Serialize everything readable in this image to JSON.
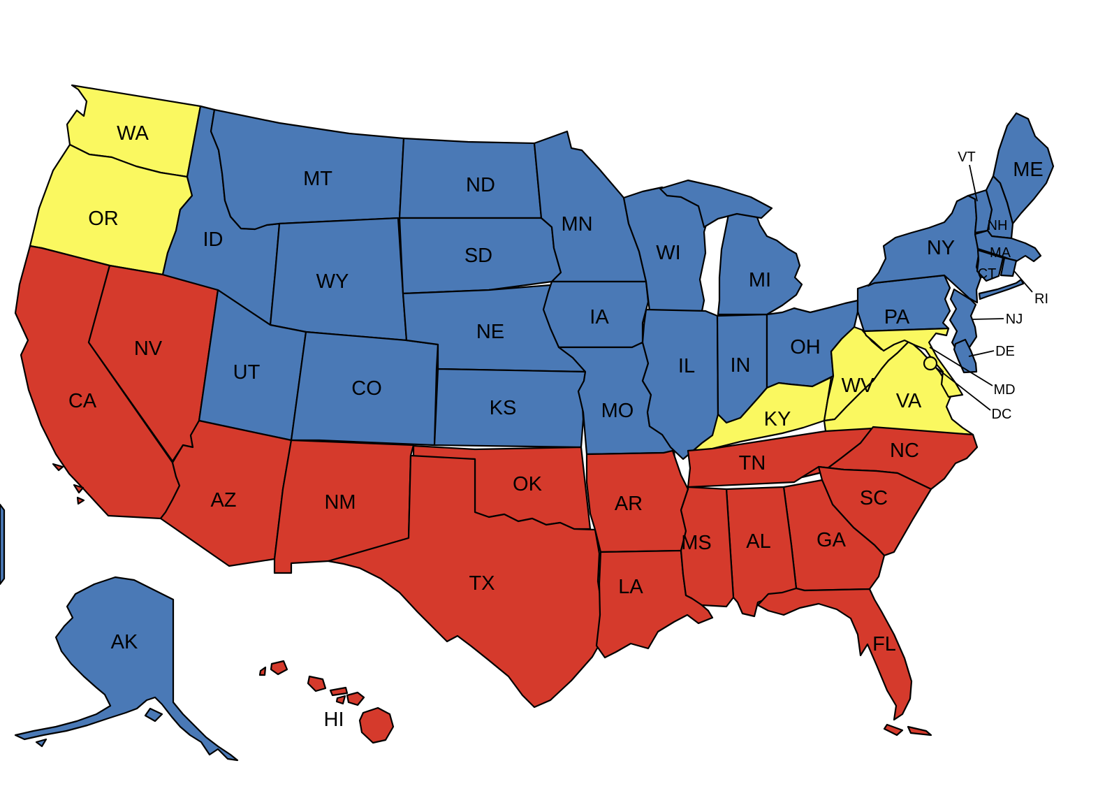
{
  "map": {
    "description": "United States map with states shaded in three categories",
    "background_color": "#ffffff",
    "border_color": "#000000",
    "categories": {
      "blue": "#4A79B6",
      "red": "#D53A2C",
      "yellow": "#FAF860"
    },
    "states": [
      {
        "abbr": "WA",
        "name": "Washington",
        "label": "WA",
        "category": "yellow"
      },
      {
        "abbr": "OR",
        "name": "Oregon",
        "label": "OR",
        "category": "yellow"
      },
      {
        "abbr": "CA",
        "name": "California",
        "label": "CA",
        "category": "red"
      },
      {
        "abbr": "NV",
        "name": "Nevada",
        "label": "NV",
        "category": "red"
      },
      {
        "abbr": "ID",
        "name": "Idaho",
        "label": "ID",
        "category": "blue"
      },
      {
        "abbr": "MT",
        "name": "Montana",
        "label": "MT",
        "category": "blue"
      },
      {
        "abbr": "WY",
        "name": "Wyoming",
        "label": "WY",
        "category": "blue"
      },
      {
        "abbr": "UT",
        "name": "Utah",
        "label": "UT",
        "category": "blue"
      },
      {
        "abbr": "CO",
        "name": "Colorado",
        "label": "CO",
        "category": "blue"
      },
      {
        "abbr": "AZ",
        "name": "Arizona",
        "label": "AZ",
        "category": "red"
      },
      {
        "abbr": "NM",
        "name": "New Mexico",
        "label": "NM",
        "category": "red"
      },
      {
        "abbr": "ND",
        "name": "North Dakota",
        "label": "ND",
        "category": "blue"
      },
      {
        "abbr": "SD",
        "name": "South Dakota",
        "label": "SD",
        "category": "blue"
      },
      {
        "abbr": "NE",
        "name": "Nebraska",
        "label": "NE",
        "category": "blue"
      },
      {
        "abbr": "KS",
        "name": "Kansas",
        "label": "KS",
        "category": "blue"
      },
      {
        "abbr": "OK",
        "name": "Oklahoma",
        "label": "OK",
        "category": "red"
      },
      {
        "abbr": "TX",
        "name": "Texas",
        "label": "TX",
        "category": "red"
      },
      {
        "abbr": "MN",
        "name": "Minnesota",
        "label": "MN",
        "category": "blue"
      },
      {
        "abbr": "IA",
        "name": "Iowa",
        "label": "IA",
        "category": "blue"
      },
      {
        "abbr": "MO",
        "name": "Missouri",
        "label": "MO",
        "category": "blue"
      },
      {
        "abbr": "AR",
        "name": "Arkansas",
        "label": "AR",
        "category": "red"
      },
      {
        "abbr": "LA",
        "name": "Louisiana",
        "label": "LA",
        "category": "red"
      },
      {
        "abbr": "WI",
        "name": "Wisconsin",
        "label": "WI",
        "category": "blue"
      },
      {
        "abbr": "IL",
        "name": "Illinois",
        "label": "IL",
        "category": "blue"
      },
      {
        "abbr": "IN",
        "name": "Indiana",
        "label": "IN",
        "category": "blue"
      },
      {
        "abbr": "OH",
        "name": "Ohio",
        "label": "OH",
        "category": "blue"
      },
      {
        "abbr": "MI",
        "name": "Michigan",
        "label": "MI",
        "category": "blue"
      },
      {
        "abbr": "KY",
        "name": "Kentucky",
        "label": "KY",
        "category": "yellow"
      },
      {
        "abbr": "TN",
        "name": "Tennessee",
        "label": "TN",
        "category": "red"
      },
      {
        "abbr": "WV",
        "name": "West Virginia",
        "label": "WV",
        "category": "yellow"
      },
      {
        "abbr": "VA",
        "name": "Virginia",
        "label": "VA",
        "category": "yellow"
      },
      {
        "abbr": "NC",
        "name": "North Carolina",
        "label": "NC",
        "category": "red"
      },
      {
        "abbr": "SC",
        "name": "South Carolina",
        "label": "SC",
        "category": "red"
      },
      {
        "abbr": "GA",
        "name": "Georgia",
        "label": "GA",
        "category": "red"
      },
      {
        "abbr": "AL",
        "name": "Alabama",
        "label": "AL",
        "category": "red"
      },
      {
        "abbr": "MS",
        "name": "Mississippi",
        "label": "MS",
        "category": "red"
      },
      {
        "abbr": "FL",
        "name": "Florida",
        "label": "FL",
        "category": "red"
      },
      {
        "abbr": "PA",
        "name": "Pennsylvania",
        "label": "PA",
        "category": "blue"
      },
      {
        "abbr": "NY",
        "name": "New York",
        "label": "NY",
        "category": "blue"
      },
      {
        "abbr": "VT",
        "name": "Vermont",
        "label": "VT",
        "category": "blue"
      },
      {
        "abbr": "NH",
        "name": "New Hampshire",
        "label": "NH",
        "category": "blue"
      },
      {
        "abbr": "ME",
        "name": "Maine",
        "label": "ME",
        "category": "blue"
      },
      {
        "abbr": "MA",
        "name": "Massachusetts",
        "label": "MA",
        "category": "blue"
      },
      {
        "abbr": "CT",
        "name": "Connecticut",
        "label": "CT",
        "category": "blue"
      },
      {
        "abbr": "RI",
        "name": "Rhode Island",
        "label": "RI",
        "category": "blue"
      },
      {
        "abbr": "NJ",
        "name": "New Jersey",
        "label": "NJ",
        "category": "blue"
      },
      {
        "abbr": "MD",
        "name": "Maryland",
        "label": "MD",
        "category": "yellow"
      },
      {
        "abbr": "DE",
        "name": "Delaware",
        "label": "DE",
        "category": "blue"
      },
      {
        "abbr": "AK",
        "name": "Alaska",
        "label": "AK",
        "category": "blue"
      },
      {
        "abbr": "HI",
        "name": "Hawaii",
        "label": "HI",
        "category": "red"
      },
      {
        "abbr": "DC",
        "name": "District of Columbia",
        "label": "DC",
        "category": "yellow"
      }
    ]
  }
}
